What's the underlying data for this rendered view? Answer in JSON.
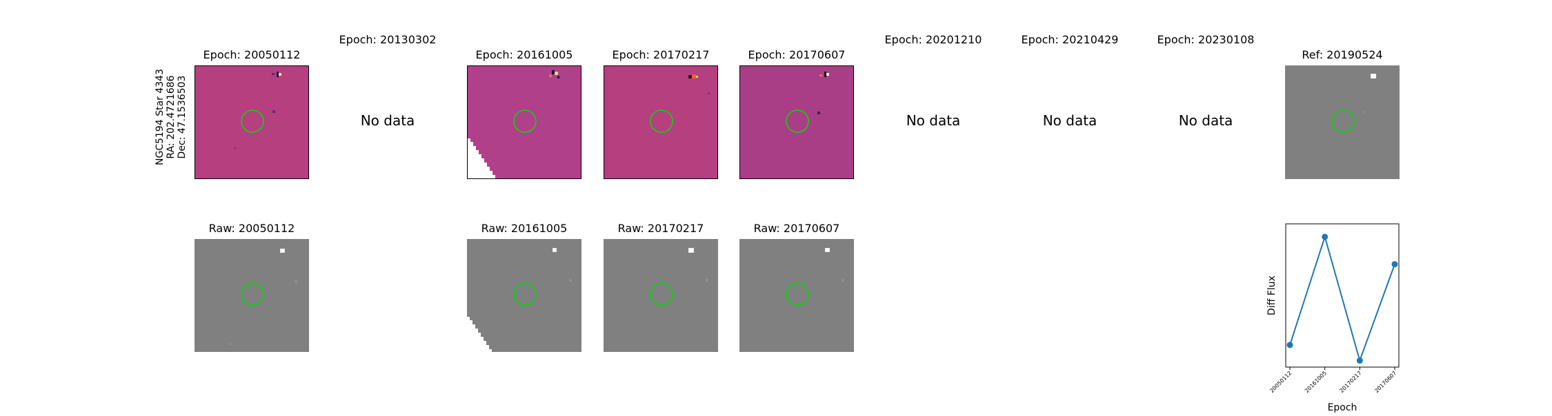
{
  "star_info": {
    "line1": "NGC5194 Star 4343",
    "line2": "RA: 202.4721686",
    "line3": "Dec: 47.1536503"
  },
  "diff_row": [
    {
      "title": "Epoch: 20050112",
      "has_data": true
    },
    {
      "title": "Epoch: 20130302",
      "has_data": false
    },
    {
      "title": "Epoch: 20161005",
      "has_data": true
    },
    {
      "title": "Epoch: 20170217",
      "has_data": true
    },
    {
      "title": "Epoch: 20170607",
      "has_data": true
    },
    {
      "title": "Epoch: 20201210",
      "has_data": false
    },
    {
      "title": "Epoch: 20210429",
      "has_data": false
    },
    {
      "title": "Epoch: 20230108",
      "has_data": false
    }
  ],
  "no_data_text": "No data",
  "ref": {
    "title": "Ref: 20190524"
  },
  "raw_row": [
    {
      "title": "Raw: 20050112"
    },
    {
      "title": "Raw: 20161005"
    },
    {
      "title": "Raw: 20170217"
    },
    {
      "title": "Raw: 20170607"
    }
  ],
  "colors": {
    "diff_bg": "#b63f80",
    "raw_bg": "#808080",
    "circle": "#00dd00",
    "line": "#1f77b4"
  },
  "chart_data": {
    "type": "line",
    "categories": [
      "20050112",
      "20161005",
      "20170217",
      "20170607"
    ],
    "values": [
      0.12,
      0.95,
      0.0,
      0.74
    ],
    "ylim": [
      -0.05,
      1.05
    ],
    "xlabel": "Epoch",
    "ylabel": "Diff Flux",
    "title": ""
  }
}
